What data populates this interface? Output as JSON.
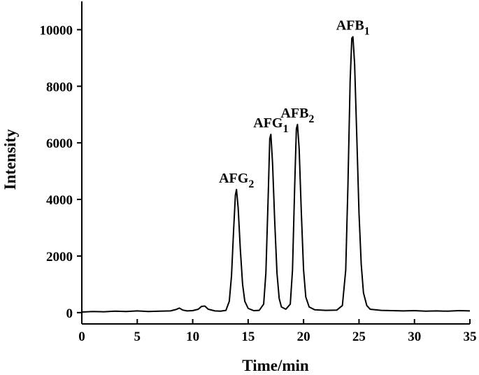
{
  "chart_data": {
    "type": "line",
    "x_label": "Time/min",
    "y_label": "Intensity",
    "xlim": [
      0,
      35
    ],
    "ylim": [
      -400,
      11000
    ],
    "xticks": [
      0,
      5,
      10,
      15,
      20,
      25,
      30,
      35
    ],
    "yticks": [
      0,
      2000,
      4000,
      6000,
      8000,
      10000
    ],
    "series": [
      {
        "color": "#000000",
        "x": [
          0,
          1,
          2,
          3,
          4,
          5,
          6,
          7,
          8,
          8.5,
          8.8,
          9.1,
          9.5,
          10,
          10.5,
          10.8,
          11.1,
          11.4,
          12,
          12.5,
          13,
          13.3,
          13.5,
          13.7,
          13.85,
          13.95,
          14.1,
          14.3,
          14.5,
          14.7,
          15,
          15.5,
          16,
          16.4,
          16.6,
          16.8,
          16.95,
          17.05,
          17.2,
          17.4,
          17.6,
          17.8,
          18,
          18.4,
          18.8,
          19,
          19.2,
          19.35,
          19.45,
          19.6,
          19.8,
          20,
          20.2,
          20.5,
          21,
          22,
          23,
          23.5,
          23.8,
          24,
          24.2,
          24.35,
          24.45,
          24.6,
          24.8,
          25,
          25.2,
          25.4,
          25.7,
          26,
          27,
          28,
          29,
          30,
          31,
          32,
          33,
          34,
          35
        ],
        "values": [
          20,
          40,
          30,
          50,
          40,
          60,
          40,
          50,
          60,
          110,
          160,
          90,
          60,
          70,
          120,
          220,
          230,
          120,
          60,
          50,
          80,
          400,
          1300,
          3000,
          4150,
          4350,
          3700,
          2200,
          1000,
          400,
          150,
          70,
          80,
          300,
          1400,
          4000,
          6150,
          6300,
          5300,
          3200,
          1400,
          500,
          200,
          120,
          300,
          1500,
          4500,
          6500,
          6650,
          5800,
          3500,
          1500,
          550,
          200,
          100,
          80,
          90,
          250,
          1500,
          4500,
          8200,
          9700,
          9750,
          8800,
          6200,
          3500,
          1700,
          700,
          250,
          120,
          80,
          70,
          60,
          70,
          50,
          60,
          50,
          70,
          60
        ]
      }
    ],
    "annotations": [
      {
        "text": "AFG",
        "sub": "2",
        "x": 13.95,
        "y": 4350
      },
      {
        "text": "AFG",
        "sub": "1",
        "x": 17.05,
        "y": 6300
      },
      {
        "text": "AFB",
        "sub": "2",
        "x": 19.45,
        "y": 6650
      },
      {
        "text": "AFB",
        "sub": "1",
        "x": 24.45,
        "y": 9750
      }
    ]
  }
}
